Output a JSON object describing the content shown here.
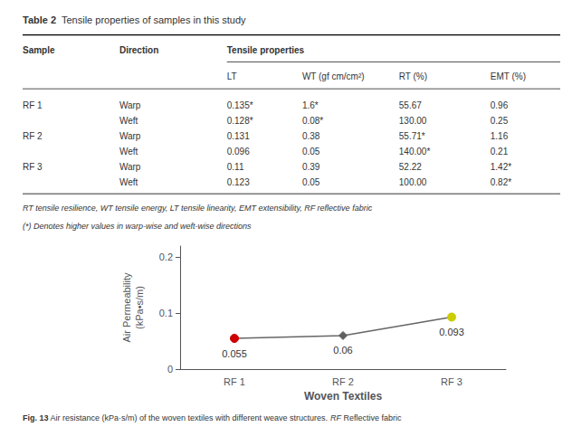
{
  "chart_data": {
    "type": "line",
    "categories": [
      "RF 1",
      "RF 2",
      "RF 3"
    ],
    "values": [
      0.055,
      0.06,
      0.093
    ],
    "color": "#666666",
    "colors": [
      "#cc0000",
      "#606060",
      "#cccc00"
    ],
    "markers": [
      "circle",
      "diamond",
      "circle"
    ],
    "data_labels": true,
    "xlabel": "Woven Textiles",
    "ylabel": "Air Permeability\n(kPa•s/m)",
    "ylim": [
      0,
      0.22
    ],
    "yticks": [
      0,
      0.1,
      0.2
    ],
    "grid": false,
    "table": {
      "title": [
        "Table 2",
        "Tensile properties of samples in this study"
      ],
      "headers": [
        "Sample",
        "Direction",
        "Tensile properties"
      ],
      "sub_headers": [
        "LT",
        "WT (gf cm/cm²)",
        "RT (%)",
        "EMT (%)"
      ],
      "rows": [
        [
          "RF 1",
          "Warp",
          "0.135*",
          "1.6*",
          "55.67",
          "0.96"
        ],
        [
          null,
          "Weft",
          "0.128*",
          "0.08*",
          "130.00",
          "0.25"
        ],
        [
          "RF 2",
          "Warp",
          "0.131",
          "0.38",
          "55.71*",
          "1.16"
        ],
        [
          null,
          "Weft",
          "0.096",
          "0.05",
          "140.00*",
          "0.21"
        ],
        [
          "RF 3",
          "Warp",
          "0.11",
          "0.39",
          "52.22",
          "1.42*"
        ],
        [
          null,
          "Weft",
          "0.123",
          "0.05",
          "100.00",
          "0.82*"
        ]
      ],
      "footnotes": [
        "RT tensile resilience, WT tensile energy, LT tensile linearity, EMT extensibility, RF reflective fabric",
        "(*) Denotes higher values in warp-wise and weft-wise directions"
      ]
    },
    "caption": [
      "Fig. 13",
      "Air resistance (kPa·s/m) of the woven textiles with different weave structures.",
      "RF",
      "Reflective fabric"
    ]
  }
}
